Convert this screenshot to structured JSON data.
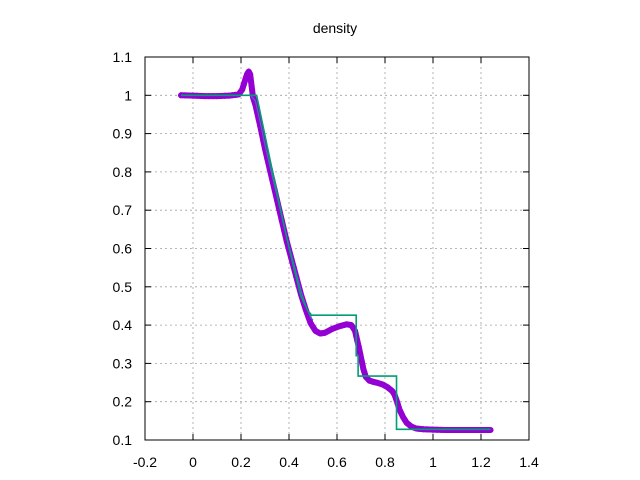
{
  "chart_data": {
    "type": "line",
    "title": "density",
    "xlabel": "",
    "ylabel": "",
    "xlim": [
      -0.2,
      1.4
    ],
    "ylim": [
      0.1,
      1.1
    ],
    "xticks": [
      -0.2,
      0,
      0.2,
      0.4,
      0.6,
      0.8,
      1,
      1.2,
      1.4
    ],
    "xtick_labels": [
      "-0.2",
      "0",
      "0.2",
      "0.4",
      "0.6",
      "0.8",
      "1",
      "1.2",
      "1.4"
    ],
    "yticks": [
      0.1,
      0.2,
      0.3,
      0.4,
      0.5,
      0.6,
      0.7,
      0.8,
      0.9,
      1,
      1.1
    ],
    "ytick_labels": [
      "0.1",
      "0.2",
      "0.3",
      "0.4",
      "0.5",
      "0.6",
      "0.7",
      "0.8",
      "0.9",
      "1",
      "1.1"
    ],
    "grid": true,
    "legend": "none",
    "series": [
      {
        "style": "points",
        "color": "#9400d3",
        "x": [
          -0.05,
          0,
          0.05,
          0.1,
          0.15,
          0.19,
          0.205,
          0.215,
          0.225,
          0.232,
          0.238,
          0.244,
          0.25,
          0.26,
          0.28,
          0.3,
          0.33,
          0.36,
          0.39,
          0.42,
          0.45,
          0.47,
          0.49,
          0.51,
          0.53,
          0.55,
          0.58,
          0.61,
          0.64,
          0.66,
          0.675,
          0.69,
          0.7,
          0.71,
          0.72,
          0.735,
          0.75,
          0.77,
          0.79,
          0.81,
          0.83,
          0.84,
          0.85,
          0.86,
          0.875,
          0.89,
          0.91,
          0.93,
          0.96,
          1.0,
          1.05,
          1.1,
          1.15,
          1.2,
          1.24
        ],
        "y": [
          1.0,
          0.999,
          0.998,
          0.998,
          0.999,
          1.002,
          1.015,
          1.035,
          1.055,
          1.062,
          1.055,
          1.025,
          0.995,
          0.975,
          0.92,
          0.86,
          0.78,
          0.7,
          0.62,
          0.55,
          0.48,
          0.44,
          0.405,
          0.385,
          0.378,
          0.38,
          0.39,
          0.397,
          0.402,
          0.4,
          0.385,
          0.345,
          0.315,
          0.285,
          0.265,
          0.255,
          0.252,
          0.249,
          0.245,
          0.238,
          0.228,
          0.218,
          0.2,
          0.18,
          0.16,
          0.145,
          0.135,
          0.13,
          0.128,
          0.127,
          0.126,
          0.126,
          0.126,
          0.126,
          0.126
        ]
      },
      {
        "style": "line",
        "color": "#4a6fb5",
        "x": [
          -0.05,
          0.05,
          0.15,
          0.24,
          0.26,
          0.28,
          0.3,
          0.33,
          0.36,
          0.39,
          0.42,
          0.45,
          0.47,
          0.49,
          0.5
        ],
        "y": [
          1.0,
          1.0,
          1.0,
          1.0,
          0.985,
          0.93,
          0.87,
          0.79,
          0.71,
          0.63,
          0.56,
          0.49,
          0.45,
          0.42,
          0.413
        ]
      },
      {
        "style": "line",
        "color": "#009e73",
        "x": [
          -0.05,
          0.265,
          0.27,
          0.3,
          0.33,
          0.36,
          0.39,
          0.42,
          0.45,
          0.48,
          0.49,
          0.49,
          0.68,
          0.68,
          0.688,
          0.688,
          0.848,
          0.848,
          0.848,
          1.24
        ],
        "y": [
          1.0,
          1.0,
          0.985,
          0.895,
          0.805,
          0.715,
          0.63,
          0.55,
          0.475,
          0.435,
          0.43,
          0.426,
          0.426,
          0.32,
          0.32,
          0.267,
          0.267,
          0.23,
          0.128,
          0.128
        ]
      }
    ]
  }
}
